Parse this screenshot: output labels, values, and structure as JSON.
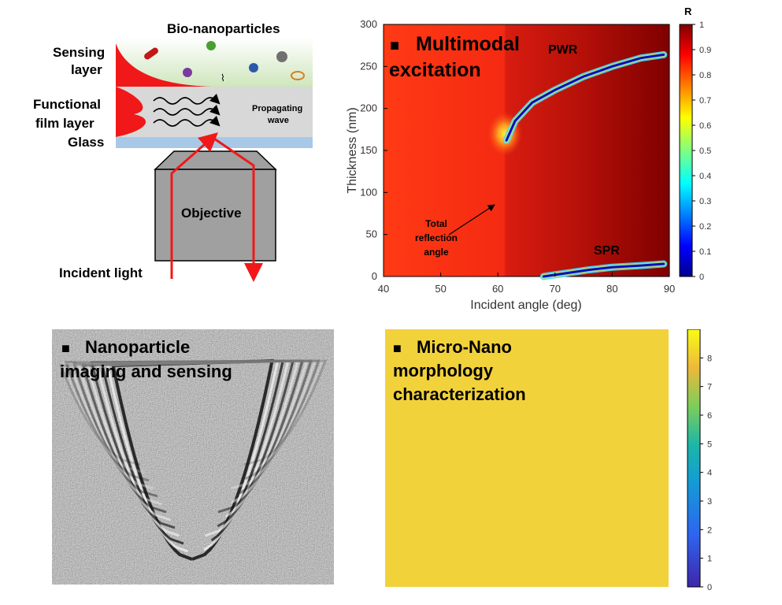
{
  "schematic": {
    "bio_label": "Bio-nanoparticles",
    "sensing_label_line1": "Sensing",
    "sensing_label_line2": "layer",
    "functional_label_line1": "Functional",
    "functional_label_line2": "film layer",
    "glass_label": "Glass",
    "propagating_line1": "Propagating",
    "propagating_line2": "wave",
    "objective_label": "Objective",
    "incident_label": "Incident light"
  },
  "chart_panel": {
    "title_line1": "Multimodal",
    "title_line2": "excitation",
    "title_marker": "■",
    "pwr_label": "PWR",
    "spr_label": "SPR",
    "tir_line1": "Total",
    "tir_line2": "reflection",
    "tir_line3": "angle",
    "colorbar_title": "R"
  },
  "chart_data": {
    "type": "heatmap",
    "xlabel": "Incident angle   (deg)",
    "ylabel": "Thickness (nm)",
    "xlim": [
      40,
      90
    ],
    "ylim": [
      0,
      300
    ],
    "x_ticks": [
      40,
      50,
      60,
      70,
      80,
      90
    ],
    "y_ticks": [
      0,
      50,
      100,
      150,
      200,
      250,
      300
    ],
    "colorbar_range": [
      0,
      1
    ],
    "colorbar_ticks": [
      0,
      0.1,
      0.2,
      0.3,
      0.4,
      0.5,
      0.6,
      0.7,
      0.8,
      0.9,
      1
    ],
    "colormap": "jet",
    "total_reflection_angle": 61.5,
    "pwr_curve": [
      [
        61.5,
        162
      ],
      [
        63,
        185
      ],
      [
        66,
        207
      ],
      [
        70,
        222
      ],
      [
        75,
        238
      ],
      [
        80,
        250
      ],
      [
        85,
        260
      ],
      [
        89,
        264
      ]
    ],
    "spr_curve": [
      [
        68,
        0
      ],
      [
        72,
        4
      ],
      [
        76,
        8
      ],
      [
        80,
        11
      ],
      [
        85,
        13
      ],
      [
        89,
        15
      ]
    ]
  },
  "panel_nanoparticle": {
    "title_marker": "■",
    "title_line1": "Nanoparticle",
    "title_line2": "imaging and sensing"
  },
  "panel_morphology": {
    "title_marker": "■",
    "title_line1": "Micro-Nano",
    "title_line2": "morphology",
    "title_line3": "characterization",
    "colorbar_ticks": [
      0,
      1,
      2,
      3,
      4,
      5,
      6,
      7,
      8
    ],
    "colorbar_range": [
      0,
      9
    ]
  },
  "colors": {
    "evanescent_red": "#f01818",
    "glass_blue": "#a8c8e8",
    "film_gray": "#d8d8d8",
    "sensing_green": "#d6ecc6",
    "heatmap_red": "#e8281c",
    "heatmap_dark": "#7f0000",
    "morph_blue": "#3b7ad8",
    "morph_yellow": "#f2d23a"
  }
}
